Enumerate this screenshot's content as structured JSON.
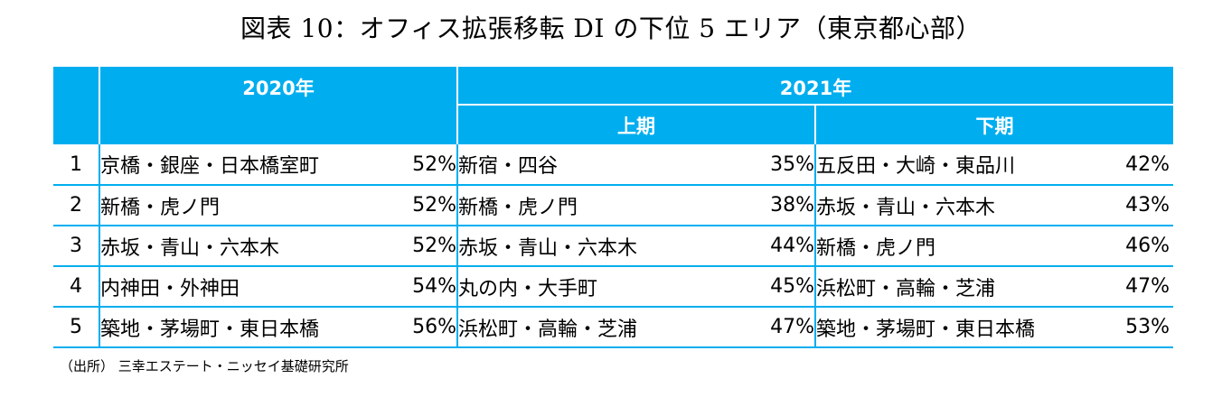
{
  "title": "図表 10：オフィス拡張移転 DI の下位 5 エリア（東京都心部）",
  "header": {
    "col_2020": "2020年",
    "col_2021": "2021年",
    "first_half": "上期",
    "second_half": "下期"
  },
  "rows": [
    {
      "rank": "1",
      "a2020": "京橋・銀座・日本橋室町",
      "p2020": "52%",
      "a2021h1": "新宿・四谷",
      "p2021h1": "35%",
      "a2021h2": "五反田・大崎・東品川",
      "p2021h2": "42%"
    },
    {
      "rank": "2",
      "a2020": "新橋・虎ノ門",
      "p2020": "52%",
      "a2021h1": "新橋・虎ノ門",
      "p2021h1": "38%",
      "a2021h2": "赤坂・青山・六本木",
      "p2021h2": "43%"
    },
    {
      "rank": "3",
      "a2020": "赤坂・青山・六本木",
      "p2020": "52%",
      "a2021h1": "赤坂・青山・六本木",
      "p2021h1": "44%",
      "a2021h2": "新橋・虎ノ門",
      "p2021h2": "46%"
    },
    {
      "rank": "4",
      "a2020": "内神田・外神田",
      "p2020": "54%",
      "a2021h1": "丸の内・大手町",
      "p2021h1": "45%",
      "a2021h2": "浜松町・高輪・芝浦",
      "p2021h2": "47%"
    },
    {
      "rank": "5",
      "a2020": "築地・茅場町・東日本橋",
      "p2020": "56%",
      "a2021h1": "浜松町・高輪・芝浦",
      "p2021h1": "47%",
      "a2021h2": "築地・茅場町・東日本橋",
      "p2021h2": "53%"
    }
  ],
  "source": "（出所） 三幸エステート・ニッセイ基礎研究所",
  "colors": {
    "header_bg": "#00aeef",
    "header_text": "#ffffff",
    "grid_line": "#00aeef"
  }
}
